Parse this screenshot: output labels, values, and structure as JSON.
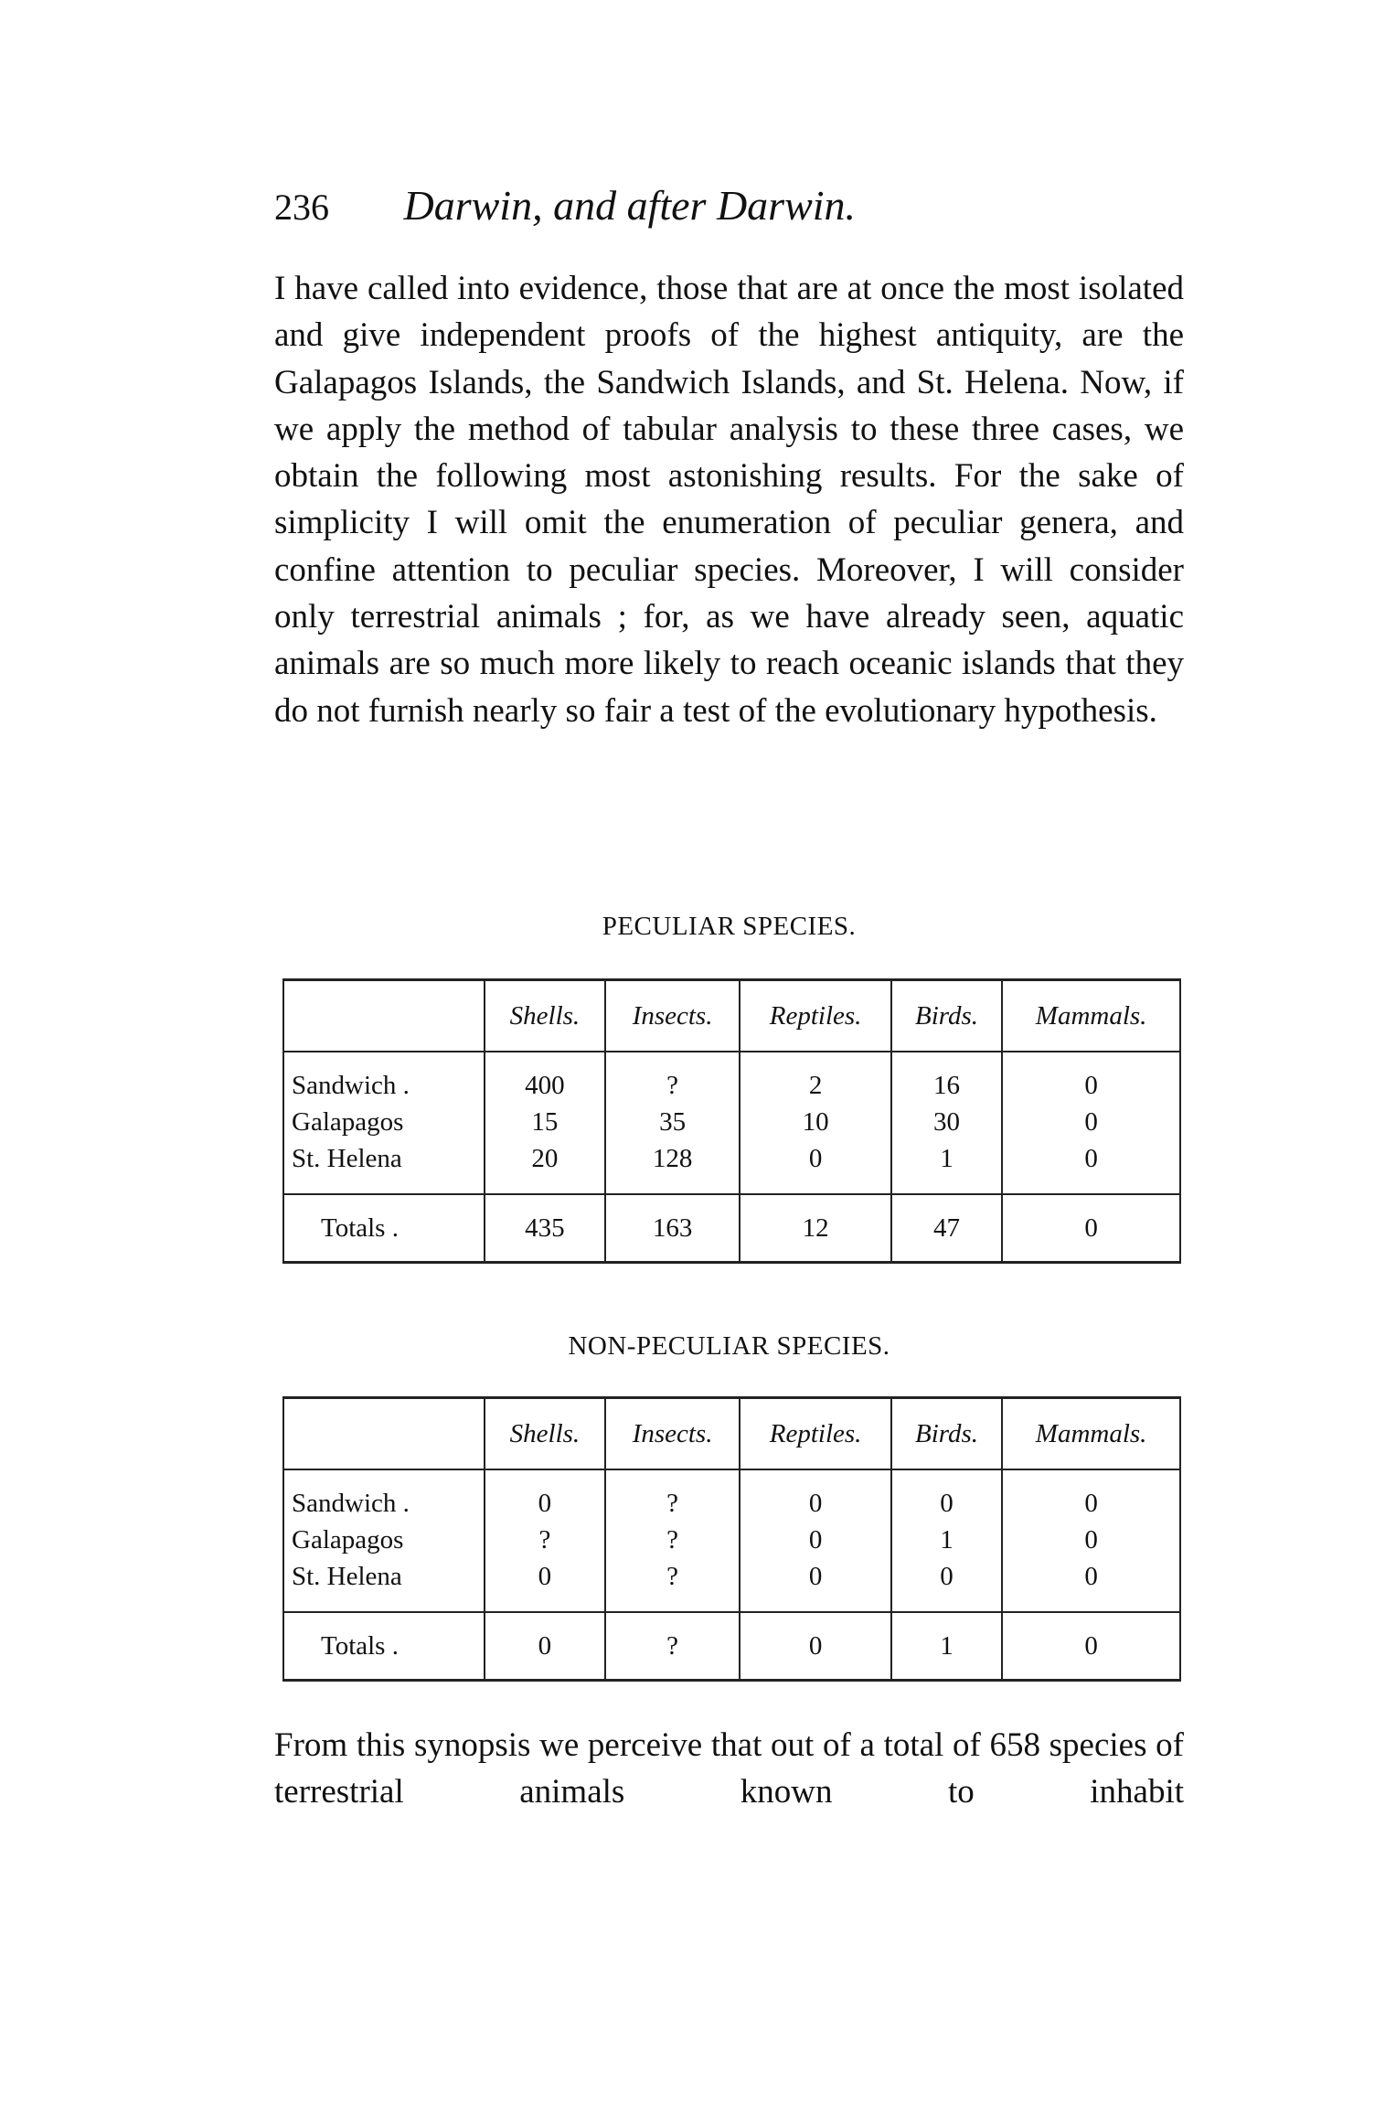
{
  "header": {
    "page_number": "236",
    "title": "Darwin, and after Darwin."
  },
  "paragraph1": "I have called into evidence, those that are at once the most isolated and give independent proofs of the highest antiquity, are the Galapagos Islands, the Sandwich Islands, and St. Helena. Now, if we apply the method of tabular analysis to these three cases, we obtain the following most astonishing results. For the sake of simplicity I will omit the enumeration of peculiar genera, and confine attention to peculiar species. Moreover, I will consider only terrestrial animals ; for, as we have already seen, aquatic animals are so much more likely to reach oceanic islands that they do not furnish nearly so fair a test of the evolutionary hypothesis.",
  "tables": [
    {
      "caption": "PECULIAR SPECIES.",
      "columns": [
        "Shells.",
        "Insects.",
        "Reptiles.",
        "Birds.",
        "Mammals."
      ],
      "rows": [
        {
          "label": "Sandwich .",
          "values": [
            "400",
            "?",
            "2",
            "16",
            "0"
          ]
        },
        {
          "label": "Galapagos",
          "values": [
            "15",
            "35",
            "10",
            "30",
            "0"
          ]
        },
        {
          "label": "St. Helena",
          "values": [
            "20",
            "128",
            "0",
            "1",
            "0"
          ]
        }
      ],
      "totals": {
        "label": "Totals .",
        "values": [
          "435",
          "163",
          "12",
          "47",
          "0"
        ]
      }
    },
    {
      "caption": "NON-PECULIAR SPECIES.",
      "columns": [
        "Shells.",
        "Insects.",
        "Reptiles.",
        "Birds.",
        "Mammals."
      ],
      "rows": [
        {
          "label": "Sandwich .",
          "values": [
            "0",
            "?",
            "0",
            "0",
            "0"
          ]
        },
        {
          "label": "Galapagos",
          "values": [
            "?",
            "?",
            "0",
            "1",
            "0"
          ]
        },
        {
          "label": "St. Helena",
          "values": [
            "0",
            "?",
            "0",
            "0",
            "0"
          ]
        }
      ],
      "totals": {
        "label": "Totals .",
        "values": [
          "0",
          "?",
          "0",
          "1",
          "0"
        ]
      }
    }
  ],
  "paragraph2": "From this synopsis we perceive that out of a total of 658 species of terrestrial animals known to inhabit"
}
